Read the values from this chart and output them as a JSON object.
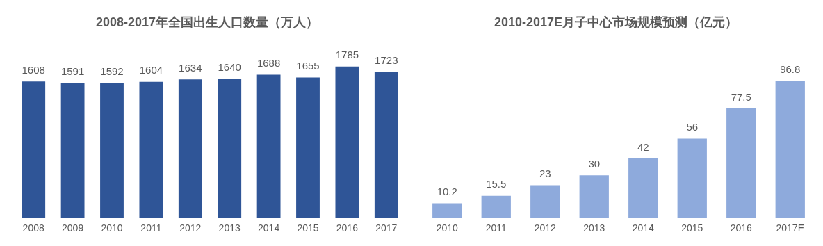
{
  "chart_data": [
    {
      "type": "bar",
      "title": "2008-2017年全国出生人口数量（万人）",
      "categories": [
        "2008",
        "2009",
        "2010",
        "2011",
        "2012",
        "2013",
        "2014",
        "2015",
        "2016",
        "2017"
      ],
      "values": [
        1608,
        1591,
        1592,
        1604,
        1634,
        1640,
        1688,
        1655,
        1785,
        1723
      ],
      "color": "#2f5597",
      "data_labels": true,
      "grid": false,
      "legend": false,
      "tick_labels": "x"
    },
    {
      "type": "bar",
      "title": "2010-2017E月子中心市场规模预测（亿元）",
      "categories": [
        "2010",
        "2011",
        "2012",
        "2013",
        "2014",
        "2015",
        "2016",
        "2017E"
      ],
      "values": [
        10.2,
        15.5,
        23,
        30,
        42,
        56,
        77.5,
        96.8
      ],
      "color": "#8eaadc",
      "data_labels": true,
      "grid": false,
      "legend": false,
      "tick_labels": "x"
    }
  ]
}
